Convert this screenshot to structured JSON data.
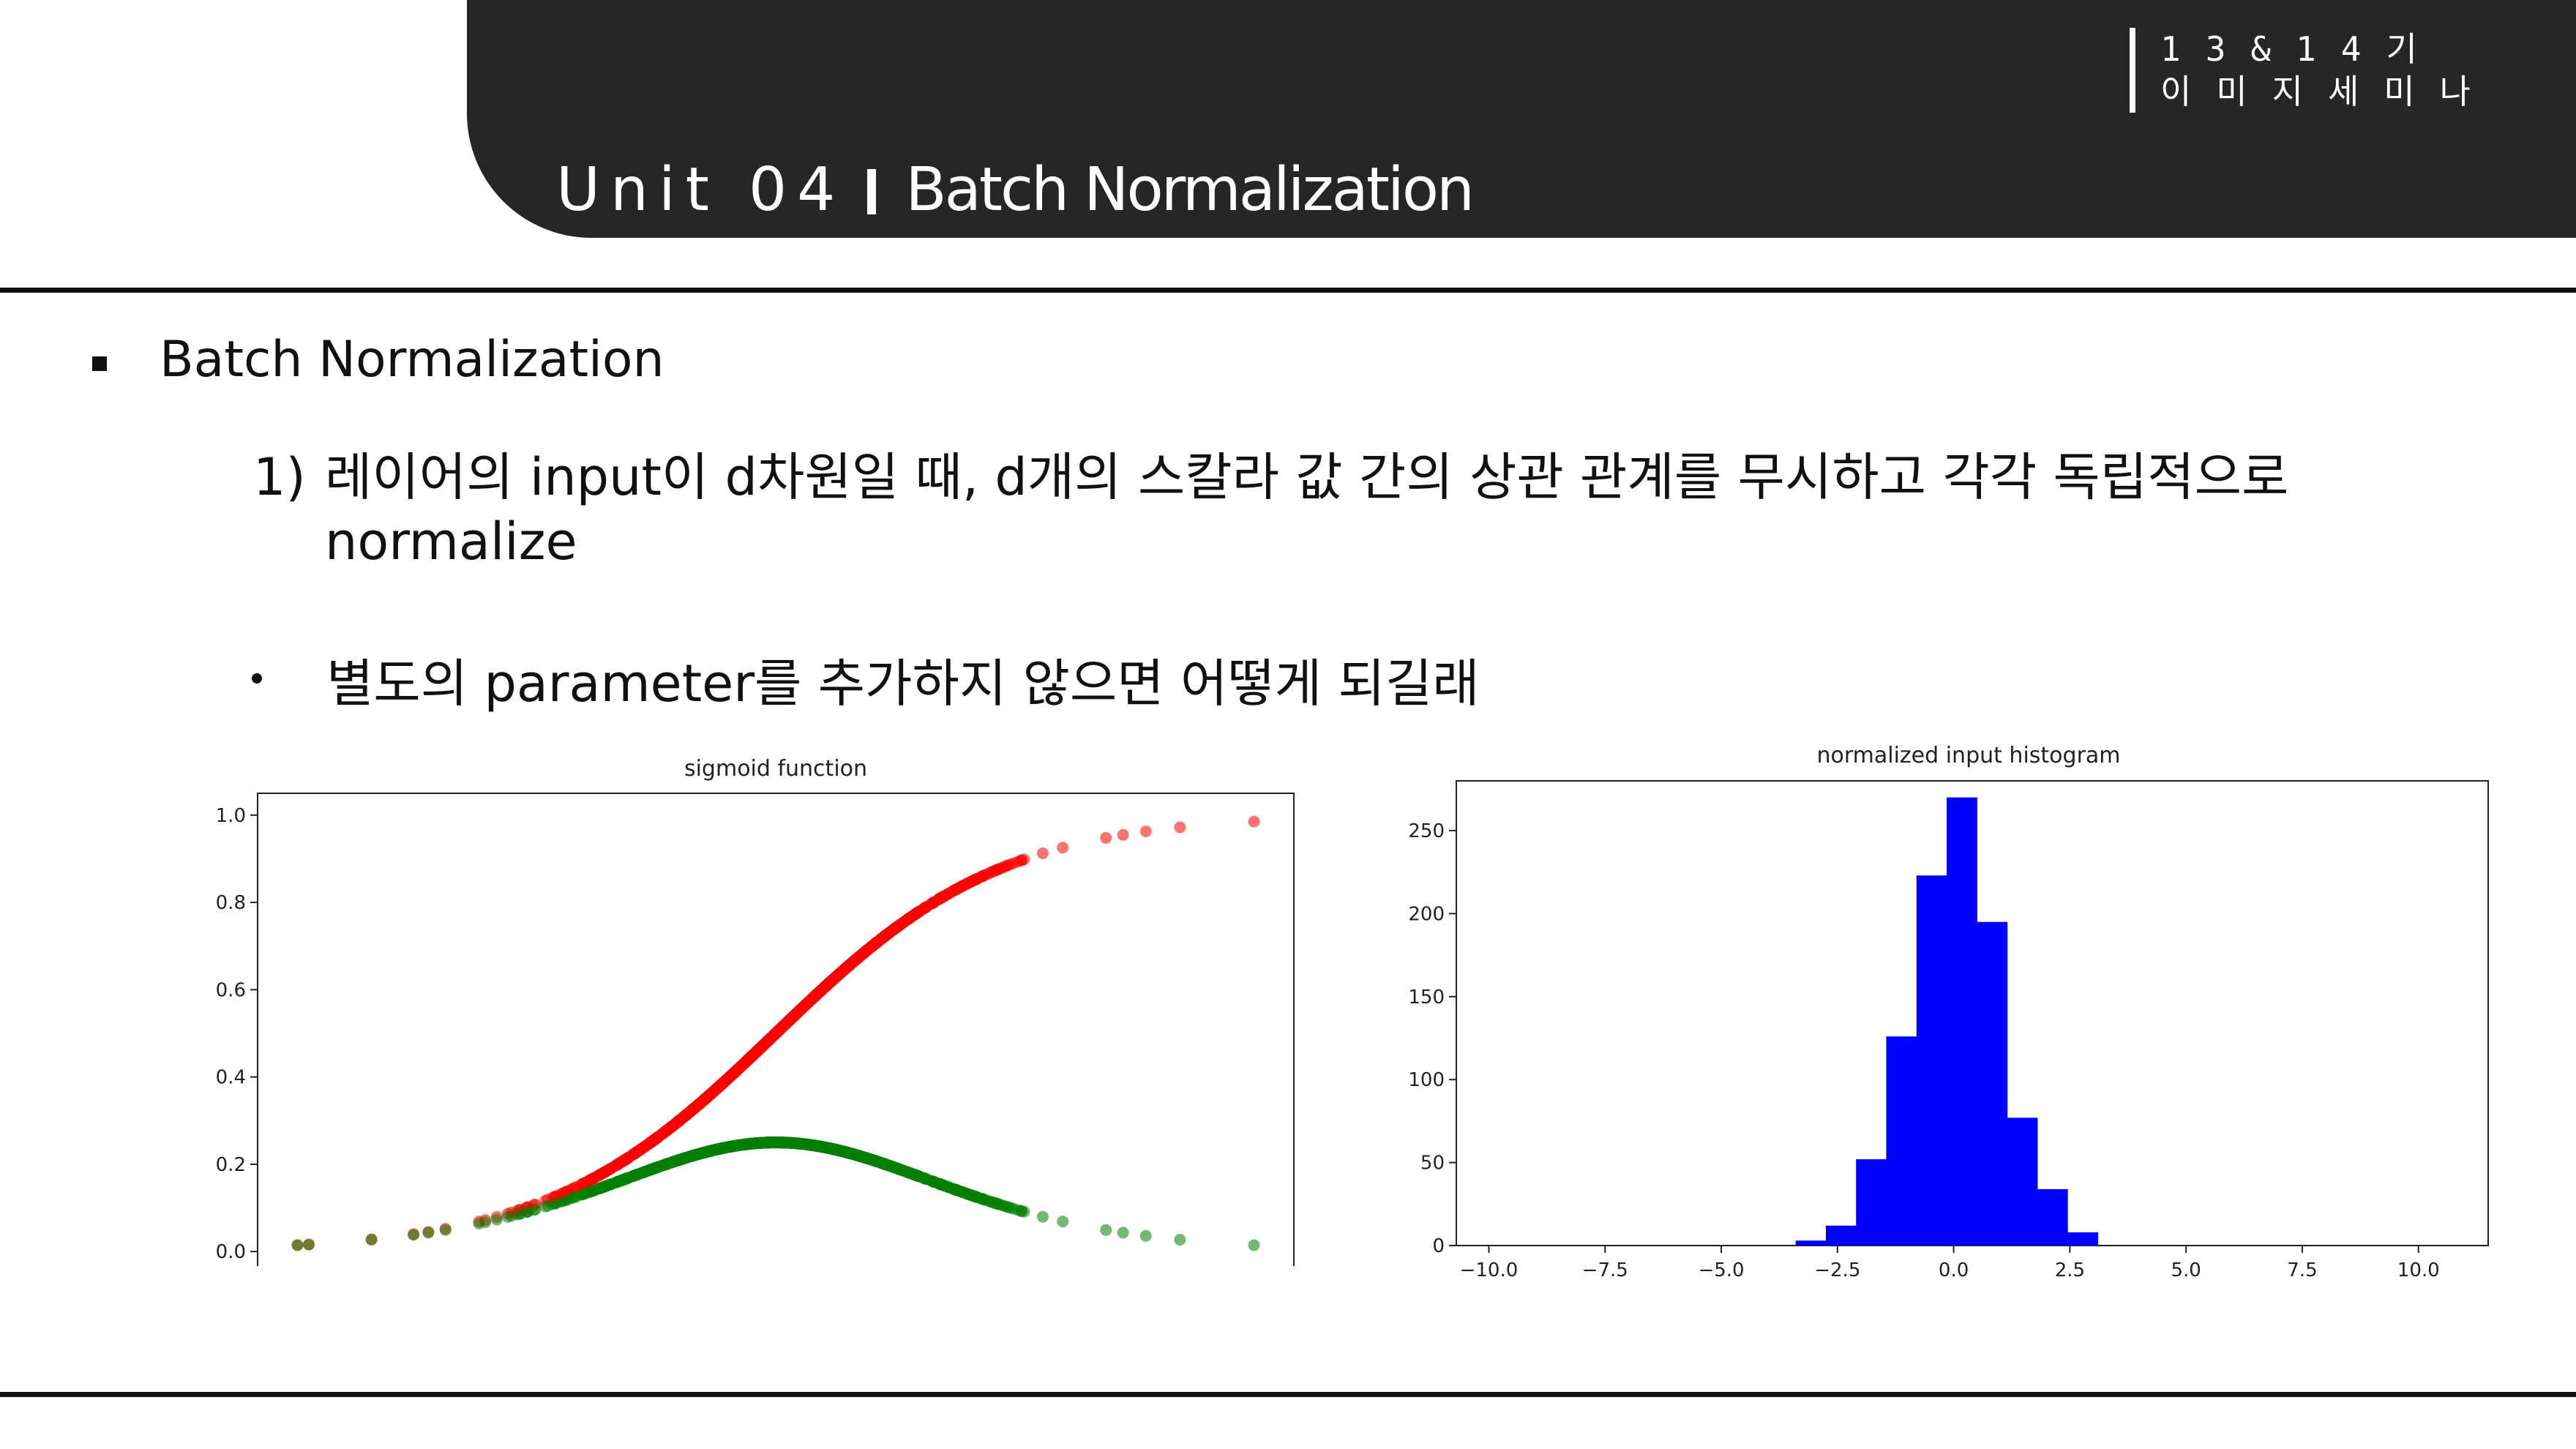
{
  "header": {
    "unit": "Unit 04",
    "topic": "Batch Normalization",
    "seminar_line1": "13&14기",
    "seminar_line2": "이미지세미나"
  },
  "content": {
    "heading": "Batch Normalization",
    "point1_number": "1)",
    "point1_text_line1": "레이어의 input이 d차원일 때, d개의 스칼라 값 간의 상관 관계를 무시하고 각각 독립적으로",
    "point1_text_line2": "normalize",
    "point2_text": "별도의 parameter를 추가하지 않으면 어떻게 되길래"
  },
  "colors": {
    "banner": "#262626",
    "sigmoid": "#ff0000",
    "derivative": "#008000",
    "histogram": "#0000ff"
  },
  "chart_data": [
    {
      "type": "scatter",
      "title": "sigmoid function",
      "xlim": [
        -4.55,
        4.55
      ],
      "ylim": [
        -0.05,
        1.05
      ],
      "yticks": [
        "0.0",
        "0.2",
        "0.4",
        "0.6",
        "0.8",
        "1.0"
      ],
      "xticks_values": [
        -4,
        -3,
        -2,
        -1,
        0,
        1,
        2,
        3,
        4
      ],
      "xtick_labels_visible": false,
      "series": [
        {
          "function": "sigmoid",
          "color": "#ff0000",
          "x_range": [
            -4.2,
            4.2
          ]
        },
        {
          "function": "sigmoid_derivative",
          "color": "#008000",
          "x_range": [
            -4.2,
            4.2
          ]
        }
      ]
    },
    {
      "type": "bar",
      "title": "normalized input histogram",
      "xlim": [
        -10.7,
        11.5
      ],
      "ylim": [
        0,
        280
      ],
      "xticks": [
        "-10.0",
        "-7.5",
        "-5.0",
        "-2.5",
        "0.0",
        "2.5",
        "5.0",
        "7.5",
        "10.0"
      ],
      "yticks": [
        "0",
        "50",
        "100",
        "150",
        "200",
        "250"
      ],
      "color": "#0000ff",
      "bins": [
        {
          "x0": -3.4,
          "x1": -2.75,
          "count": 3
        },
        {
          "x0": -2.75,
          "x1": -2.1,
          "count": 12
        },
        {
          "x0": -2.1,
          "x1": -1.45,
          "count": 52
        },
        {
          "x0": -1.45,
          "x1": -0.8,
          "count": 126
        },
        {
          "x0": -0.8,
          "x1": -0.15,
          "count": 223
        },
        {
          "x0": -0.15,
          "x1": 0.5,
          "count": 270
        },
        {
          "x0": 0.5,
          "x1": 1.15,
          "count": 195
        },
        {
          "x0": 1.15,
          "x1": 1.8,
          "count": 77
        },
        {
          "x0": 1.8,
          "x1": 2.45,
          "count": 34
        },
        {
          "x0": 2.45,
          "x1": 3.1,
          "count": 8
        }
      ]
    }
  ]
}
